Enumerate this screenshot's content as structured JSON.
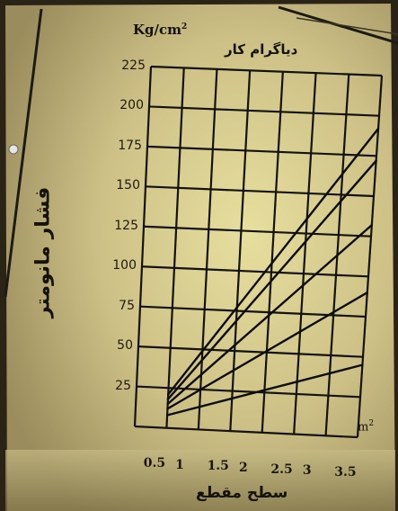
{
  "chart_data": {
    "type": "line",
    "title": "دیاگرام کار",
    "y_unit": "Kg/cm",
    "y_unit_exponent": "2",
    "x_unit": "m",
    "x_unit_exponent": "2",
    "ylabel": "فشار مانومتر",
    "xlabel": "سطح مقطع",
    "x_tick_labels": [
      "0.5",
      "1",
      "1.5",
      "2",
      "2.5",
      "3",
      "3.5"
    ],
    "y_tick_labels": [
      "25",
      "50",
      "75",
      "100",
      "125",
      "150",
      "175",
      "200",
      "225"
    ],
    "xlim": [
      0,
      3.5
    ],
    "ylim": [
      0,
      225
    ],
    "grid": true,
    "series": [
      {
        "x": [
          0.5,
          3.5
        ],
        "y": [
          21,
          192
        ]
      },
      {
        "x": [
          0.5,
          3.5
        ],
        "y": [
          18,
          172
        ]
      },
      {
        "x": [
          0.5,
          3.5
        ],
        "y": [
          15,
          132
        ]
      },
      {
        "x": [
          0.5,
          3.5
        ],
        "y": [
          12,
          90
        ]
      },
      {
        "x": [
          0.5,
          3.5
        ],
        "y": [
          8,
          45
        ]
      }
    ],
    "colors": {
      "lines": "#0d0d0b",
      "paper": "#d2c68c",
      "background": "#6f6542"
    }
  }
}
